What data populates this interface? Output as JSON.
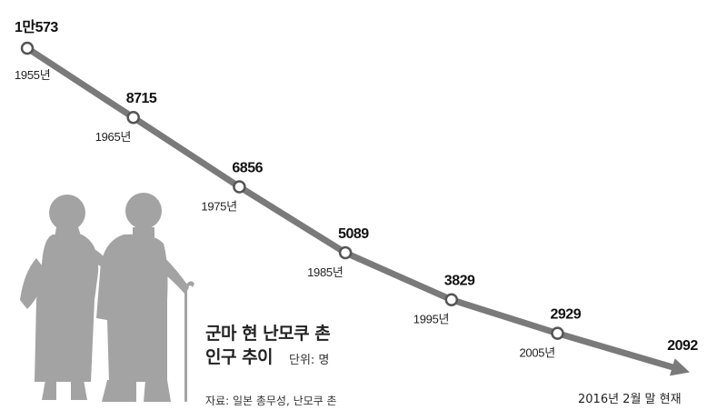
{
  "chart_data": {
    "type": "line",
    "title_lines": [
      "군마 현 난모쿠 촌",
      "인구 추이"
    ],
    "unit": "단위: 명",
    "source": "자료: 일본 총무성, 난모쿠 촌",
    "as_of": "2016년 2월 말 현재",
    "x_labels": [
      "1955년",
      "1965년",
      "1975년",
      "1985년",
      "1995년",
      "2005년",
      ""
    ],
    "values": [
      10573,
      8715,
      6856,
      5089,
      3829,
      2929,
      2092
    ],
    "value_labels": [
      "1만573",
      "8715",
      "6856",
      "5089",
      "3829",
      "2929",
      "2092"
    ],
    "line_color": "#7a7a7a",
    "marker_fill": "#ffffff",
    "silhouette_color": "#a3a3a3",
    "grid": false,
    "legend": "none"
  }
}
